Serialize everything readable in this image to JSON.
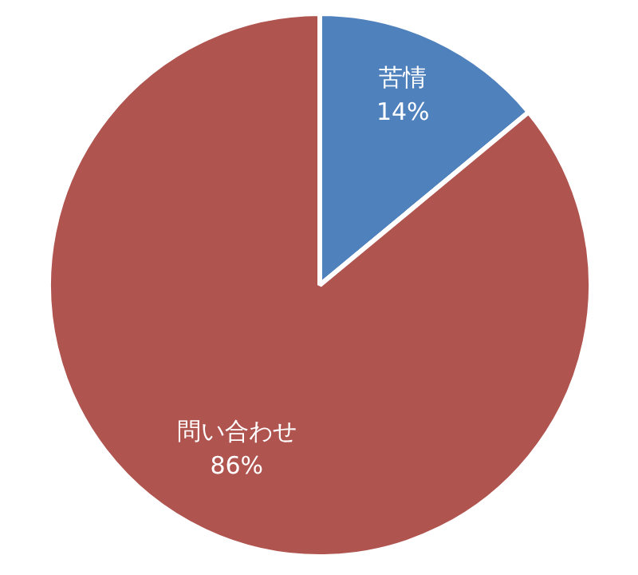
{
  "chart_data": {
    "type": "pie",
    "categories": [
      "苦情",
      "問い合わせ"
    ],
    "values": [
      14,
      86
    ],
    "colors": [
      "#4f81bd",
      "#b0544f"
    ],
    "value_labels": [
      "14%",
      "86%"
    ],
    "legend": false
  }
}
